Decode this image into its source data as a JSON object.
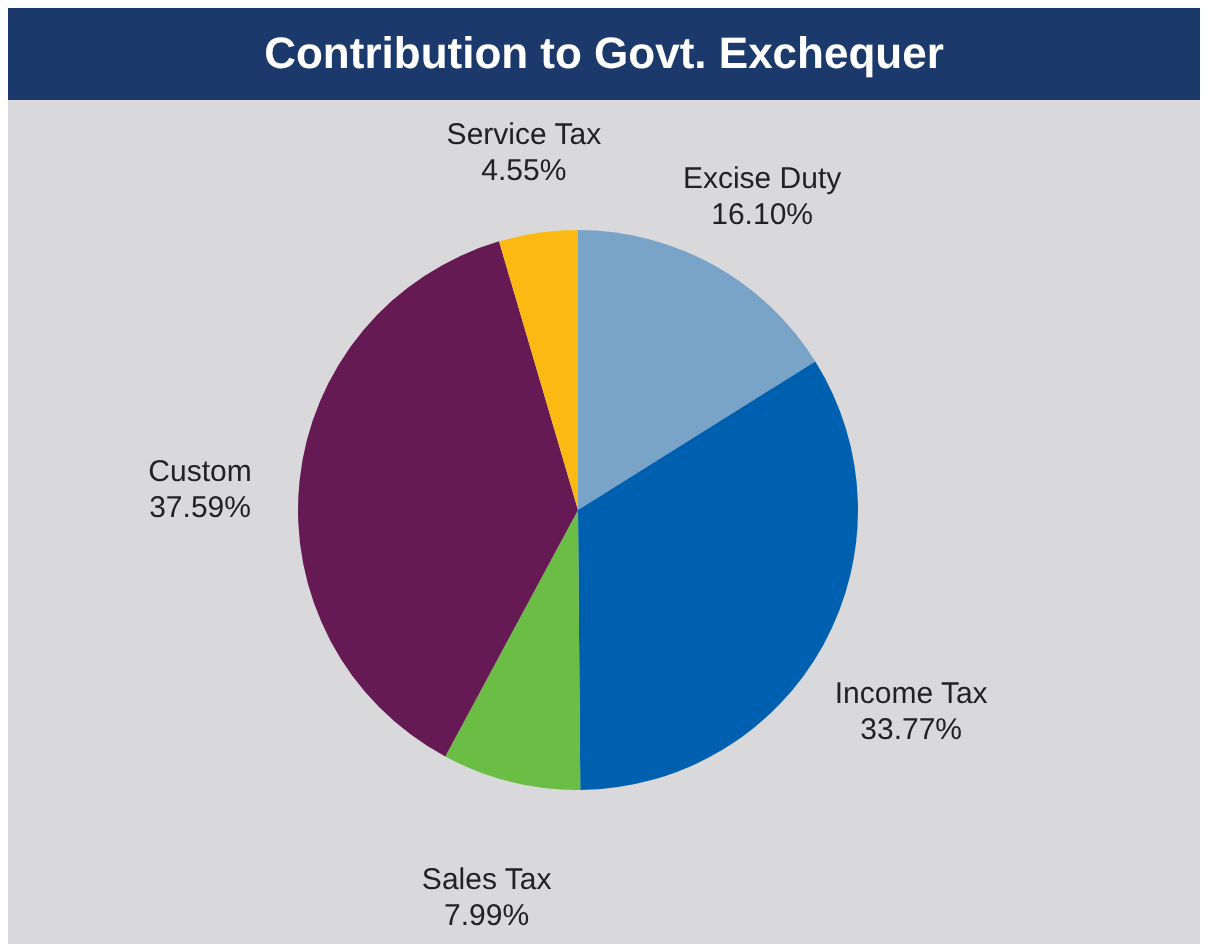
{
  "chart_data": {
    "type": "pie",
    "title": "Contribution to Govt. Exchequer",
    "categories": [
      "Excise Duty",
      "Income Tax",
      "Sales Tax",
      "Custom",
      "Service Tax"
    ],
    "values": [
      16.1,
      33.77,
      7.99,
      37.59,
      4.55
    ],
    "colors": [
      "#7aa3c8",
      "#0060b0",
      "#6bbd45",
      "#661a54",
      "#fdb913"
    ],
    "value_labels": [
      "16.10%",
      "33.77%",
      "7.99%",
      "37.59%",
      "4.55%"
    ],
    "legend": false
  }
}
